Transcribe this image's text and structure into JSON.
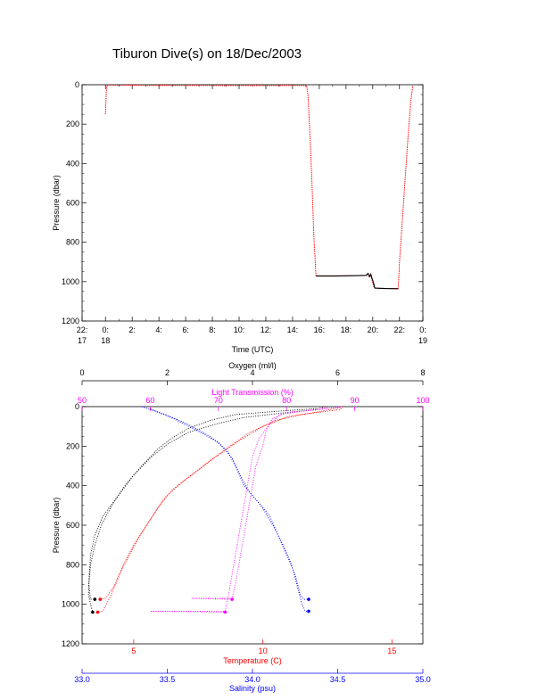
{
  "chart_data": [
    {
      "type": "line",
      "title": "Tiburon Dive(s) on 18/Dec/2003",
      "xlabel": "Time (UTC)",
      "ylabel": "Pressure (dbar)",
      "xlim": [
        -1.75,
        23.75
      ],
      "ylim": [
        1200,
        0
      ],
      "y_inverted": true,
      "x_tick_labels": [
        {
          "x": -1.75,
          "lines": [
            "22:",
            "17"
          ]
        },
        {
          "x": 0,
          "lines": [
            "0:",
            "18"
          ]
        },
        {
          "x": 2,
          "lines": [
            "2:"
          ]
        },
        {
          "x": 4,
          "lines": [
            "4:"
          ]
        },
        {
          "x": 6,
          "lines": [
            "6:"
          ]
        },
        {
          "x": 8,
          "lines": [
            "8:"
          ]
        },
        {
          "x": 10,
          "lines": [
            "10:"
          ]
        },
        {
          "x": 12,
          "lines": [
            "12:"
          ]
        },
        {
          "x": 14,
          "lines": [
            "14:"
          ]
        },
        {
          "x": 16,
          "lines": [
            "16:"
          ]
        },
        {
          "x": 18,
          "lines": [
            "18:"
          ]
        },
        {
          "x": 20,
          "lines": [
            "20:"
          ]
        },
        {
          "x": 22,
          "lines": [
            "22:"
          ]
        },
        {
          "x": 23.75,
          "lines": [
            "0:",
            "19"
          ]
        }
      ],
      "y_ticks": [
        0,
        200,
        400,
        600,
        800,
        1000,
        1200
      ],
      "series": [
        {
          "color": "#ff0000",
          "points": [
            [
              0,
              150
            ],
            [
              0.03,
              90
            ],
            [
              0.06,
              40
            ],
            [
              0.1,
              8
            ],
            [
              0.2,
              2
            ],
            [
              3,
              3
            ],
            [
              6,
              3
            ],
            [
              9,
              4
            ],
            [
              12,
              4
            ],
            [
              14.8,
              3
            ],
            [
              15.05,
              5
            ],
            [
              15.15,
              50
            ],
            [
              15.3,
              250
            ],
            [
              15.45,
              500
            ],
            [
              15.6,
              780
            ],
            [
              15.75,
              970
            ],
            [
              16.5,
              970
            ],
            [
              18,
              970
            ],
            [
              19.5,
              968
            ],
            [
              19.7,
              965
            ],
            [
              19.9,
              980
            ],
            [
              20.1,
              1030
            ],
            [
              20.5,
              1035
            ],
            [
              21.5,
              1035
            ],
            [
              21.9,
              1035
            ],
            [
              21.95,
              980
            ],
            [
              22.0,
              900
            ],
            [
              22.3,
              600
            ],
            [
              22.6,
              300
            ],
            [
              22.85,
              80
            ],
            [
              23.0,
              5
            ]
          ]
        },
        {
          "color": "#000000",
          "points": [
            [
              15.75,
              972
            ],
            [
              17,
              972
            ],
            [
              18.5,
              970
            ],
            [
              19.5,
              968
            ],
            [
              19.65,
              958
            ],
            [
              19.75,
              975
            ],
            [
              19.85,
              962
            ],
            [
              19.95,
              985
            ],
            [
              20.05,
              1005
            ],
            [
              20.15,
              1033
            ],
            [
              21,
              1035
            ],
            [
              21.9,
              1036
            ]
          ]
        }
      ]
    },
    {
      "type": "scatter",
      "ylabel": "Pressure (dbar)",
      "ylim": [
        1200,
        0
      ],
      "y_inverted": true,
      "y_ticks": [
        0,
        200,
        400,
        600,
        800,
        1000,
        1200
      ],
      "axes": [
        {
          "label": "Oxygen (ml/l)",
          "position": "top-outer",
          "range": [
            0,
            8
          ],
          "ticks": [
            0,
            2,
            4,
            6,
            8
          ],
          "color": "#000000"
        },
        {
          "label": "Light Transmission (%)",
          "position": "top-inner",
          "range": [
            50,
            100
          ],
          "ticks": [
            50,
            60,
            70,
            80,
            90,
            100
          ],
          "color": "#ff00ff"
        },
        {
          "label": "Temperature (C)",
          "position": "bottom-inner",
          "range": [
            3,
            16.2
          ],
          "ticks": [
            5,
            10,
            15
          ],
          "color": "#ff0000"
        },
        {
          "label": "Salinity (psu)",
          "position": "bottom-outer",
          "range": [
            33.0,
            35.0
          ],
          "ticks": [
            "33.0",
            "33.5",
            "34.0",
            "34.5",
            "35.0"
          ],
          "color": "#0000ff"
        }
      ],
      "series": [
        {
          "variable": "Oxygen",
          "axis": 0,
          "color": "#000000",
          "profiles": [
            [
              [
                5.7,
                0
              ],
              [
                5.5,
                15
              ],
              [
                4.8,
                30
              ],
              [
                3.8,
                55
              ],
              [
                3.2,
                85
              ],
              [
                2.5,
                130
              ],
              [
                2.0,
                190
              ],
              [
                1.6,
                260
              ],
              [
                1.2,
                350
              ],
              [
                0.85,
                450
              ],
              [
                0.5,
                550
              ],
              [
                0.3,
                650
              ],
              [
                0.2,
                750
              ],
              [
                0.17,
                850
              ],
              [
                0.15,
                950
              ],
              [
                0.2,
                1000
              ],
              [
                0.25,
                1040
              ]
            ],
            [
              [
                5.5,
                10
              ],
              [
                4.5,
                25
              ],
              [
                3.6,
                40
              ],
              [
                3.0,
                70
              ],
              [
                2.5,
                110
              ],
              [
                2.1,
                160
              ],
              [
                1.8,
                210
              ],
              [
                1.4,
                300
              ],
              [
                1.0,
                400
              ],
              [
                0.7,
                500
              ],
              [
                0.45,
                600
              ],
              [
                0.3,
                700
              ],
              [
                0.2,
                800
              ],
              [
                0.16,
                900
              ],
              [
                0.2,
                975
              ],
              [
                0.3,
                975
              ]
            ]
          ]
        },
        {
          "variable": "Light Transmission",
          "axis": 1,
          "color": "#ff00ff",
          "profiles": [
            [
              [
                88,
                0
              ],
              [
                85,
                15
              ],
              [
                80,
                30
              ],
              [
                78,
                60
              ],
              [
                77,
                120
              ],
              [
                76.5,
                200
              ],
              [
                75.5,
                300
              ],
              [
                75,
                400
              ],
              [
                74.5,
                500
              ],
              [
                74,
                600
              ],
              [
                73.5,
                700
              ],
              [
                73,
                800
              ],
              [
                72.5,
                900
              ],
              [
                72,
                970
              ],
              [
                70,
                970
              ],
              [
                66,
                970
              ],
              [
                72,
                975
              ]
            ],
            [
              [
                86,
                5
              ],
              [
                83,
                20
              ],
              [
                79,
                40
              ],
              [
                77.5,
                90
              ],
              [
                76,
                160
              ],
              [
                75,
                250
              ],
              [
                74.5,
                350
              ],
              [
                74,
                450
              ],
              [
                73.5,
                550
              ],
              [
                73,
                650
              ],
              [
                72.5,
                750
              ],
              [
                72,
                850
              ],
              [
                71.5,
                950
              ],
              [
                71,
                1035
              ],
              [
                67,
                1035
              ],
              [
                60,
                1035
              ],
              [
                71,
                1040
              ]
            ]
          ]
        },
        {
          "variable": "Temperature",
          "axis": 2,
          "color": "#ff0000",
          "profiles": [
            [
              [
                13.1,
                0
              ],
              [
                13.0,
                15
              ],
              [
                11.5,
                40
              ],
              [
                10.5,
                70
              ],
              [
                9.5,
                130
              ],
              [
                8.5,
                220
              ],
              [
                7.5,
                320
              ],
              [
                6.5,
                420
              ],
              [
                6.0,
                500
              ],
              [
                5.5,
                600
              ],
              [
                5.0,
                700
              ],
              [
                4.6,
                800
              ],
              [
                4.3,
                900
              ],
              [
                3.9,
                970
              ],
              [
                3.7,
                975
              ]
            ],
            [
              [
                13.0,
                5
              ],
              [
                12.0,
                30
              ],
              [
                11.0,
                50
              ],
              [
                10.0,
                100
              ],
              [
                9.0,
                180
              ],
              [
                8.0,
                270
              ],
              [
                7.0,
                370
              ],
              [
                6.2,
                460
              ],
              [
                5.7,
                560
              ],
              [
                5.2,
                660
              ],
              [
                4.8,
                760
              ],
              [
                4.4,
                860
              ],
              [
                4.1,
                960
              ],
              [
                3.8,
                1035
              ],
              [
                3.6,
                1040
              ]
            ]
          ]
        },
        {
          "variable": "Salinity",
          "axis": 3,
          "color": "#0000ff",
          "profiles": [
            [
              [
                33.35,
                0
              ],
              [
                33.45,
                30
              ],
              [
                33.6,
                80
              ],
              [
                33.75,
                150
              ],
              [
                33.85,
                220
              ],
              [
                33.9,
                300
              ],
              [
                33.95,
                400
              ],
              [
                34.0,
                450
              ],
              [
                34.1,
                550
              ],
              [
                34.15,
                650
              ],
              [
                34.2,
                750
              ],
              [
                34.25,
                850
              ],
              [
                34.28,
                950
              ],
              [
                34.3,
                975
              ],
              [
                34.33,
                975
              ]
            ],
            [
              [
                33.4,
                10
              ],
              [
                33.5,
                45
              ],
              [
                33.65,
                110
              ],
              [
                33.8,
                180
              ],
              [
                33.88,
                260
              ],
              [
                33.93,
                350
              ],
              [
                33.98,
                430
              ],
              [
                34.05,
                500
              ],
              [
                34.12,
                600
              ],
              [
                34.18,
                700
              ],
              [
                34.23,
                800
              ],
              [
                34.26,
                900
              ],
              [
                34.29,
                1000
              ],
              [
                34.31,
                1035
              ],
              [
                34.33,
                1035
              ]
            ]
          ]
        }
      ]
    }
  ]
}
